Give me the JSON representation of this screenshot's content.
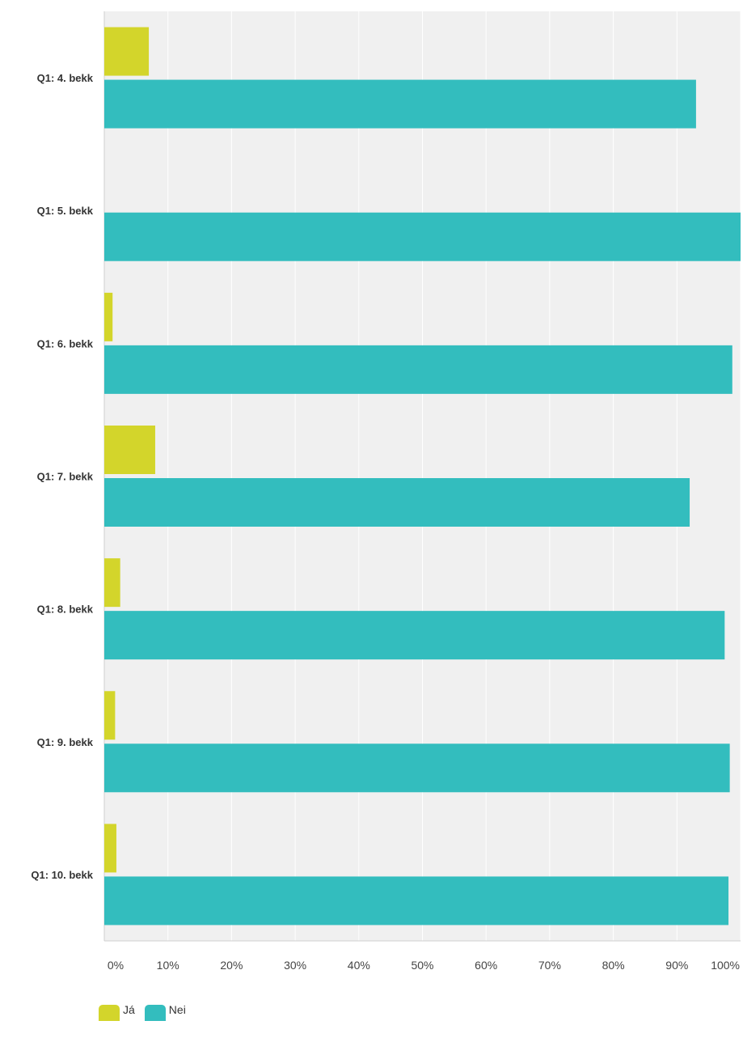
{
  "chart_data": {
    "type": "bar",
    "orientation": "horizontal",
    "categories": [
      "Q1: 4. bekk",
      "Q1: 5. bekk",
      "Q1: 6. bekk",
      "Q1: 7. bekk",
      "Q1: 8. bekk",
      "Q1: 9. bekk",
      "Q1: 10. bekk"
    ],
    "series": [
      {
        "name": "Já",
        "color": "#d3d52b",
        "values": [
          7,
          0,
          1.3,
          8,
          2.5,
          1.7,
          1.9
        ]
      },
      {
        "name": "Nei",
        "color": "#33bdbe",
        "values": [
          93,
          100,
          98.7,
          92,
          97.5,
          98.3,
          98.1
        ]
      }
    ],
    "x_ticks": [
      "0%",
      "10%",
      "20%",
      "30%",
      "40%",
      "50%",
      "60%",
      "70%",
      "80%",
      "90%",
      "100%"
    ],
    "xlim": [
      0,
      100
    ],
    "grid": true,
    "legend_position": "bottom-left"
  }
}
